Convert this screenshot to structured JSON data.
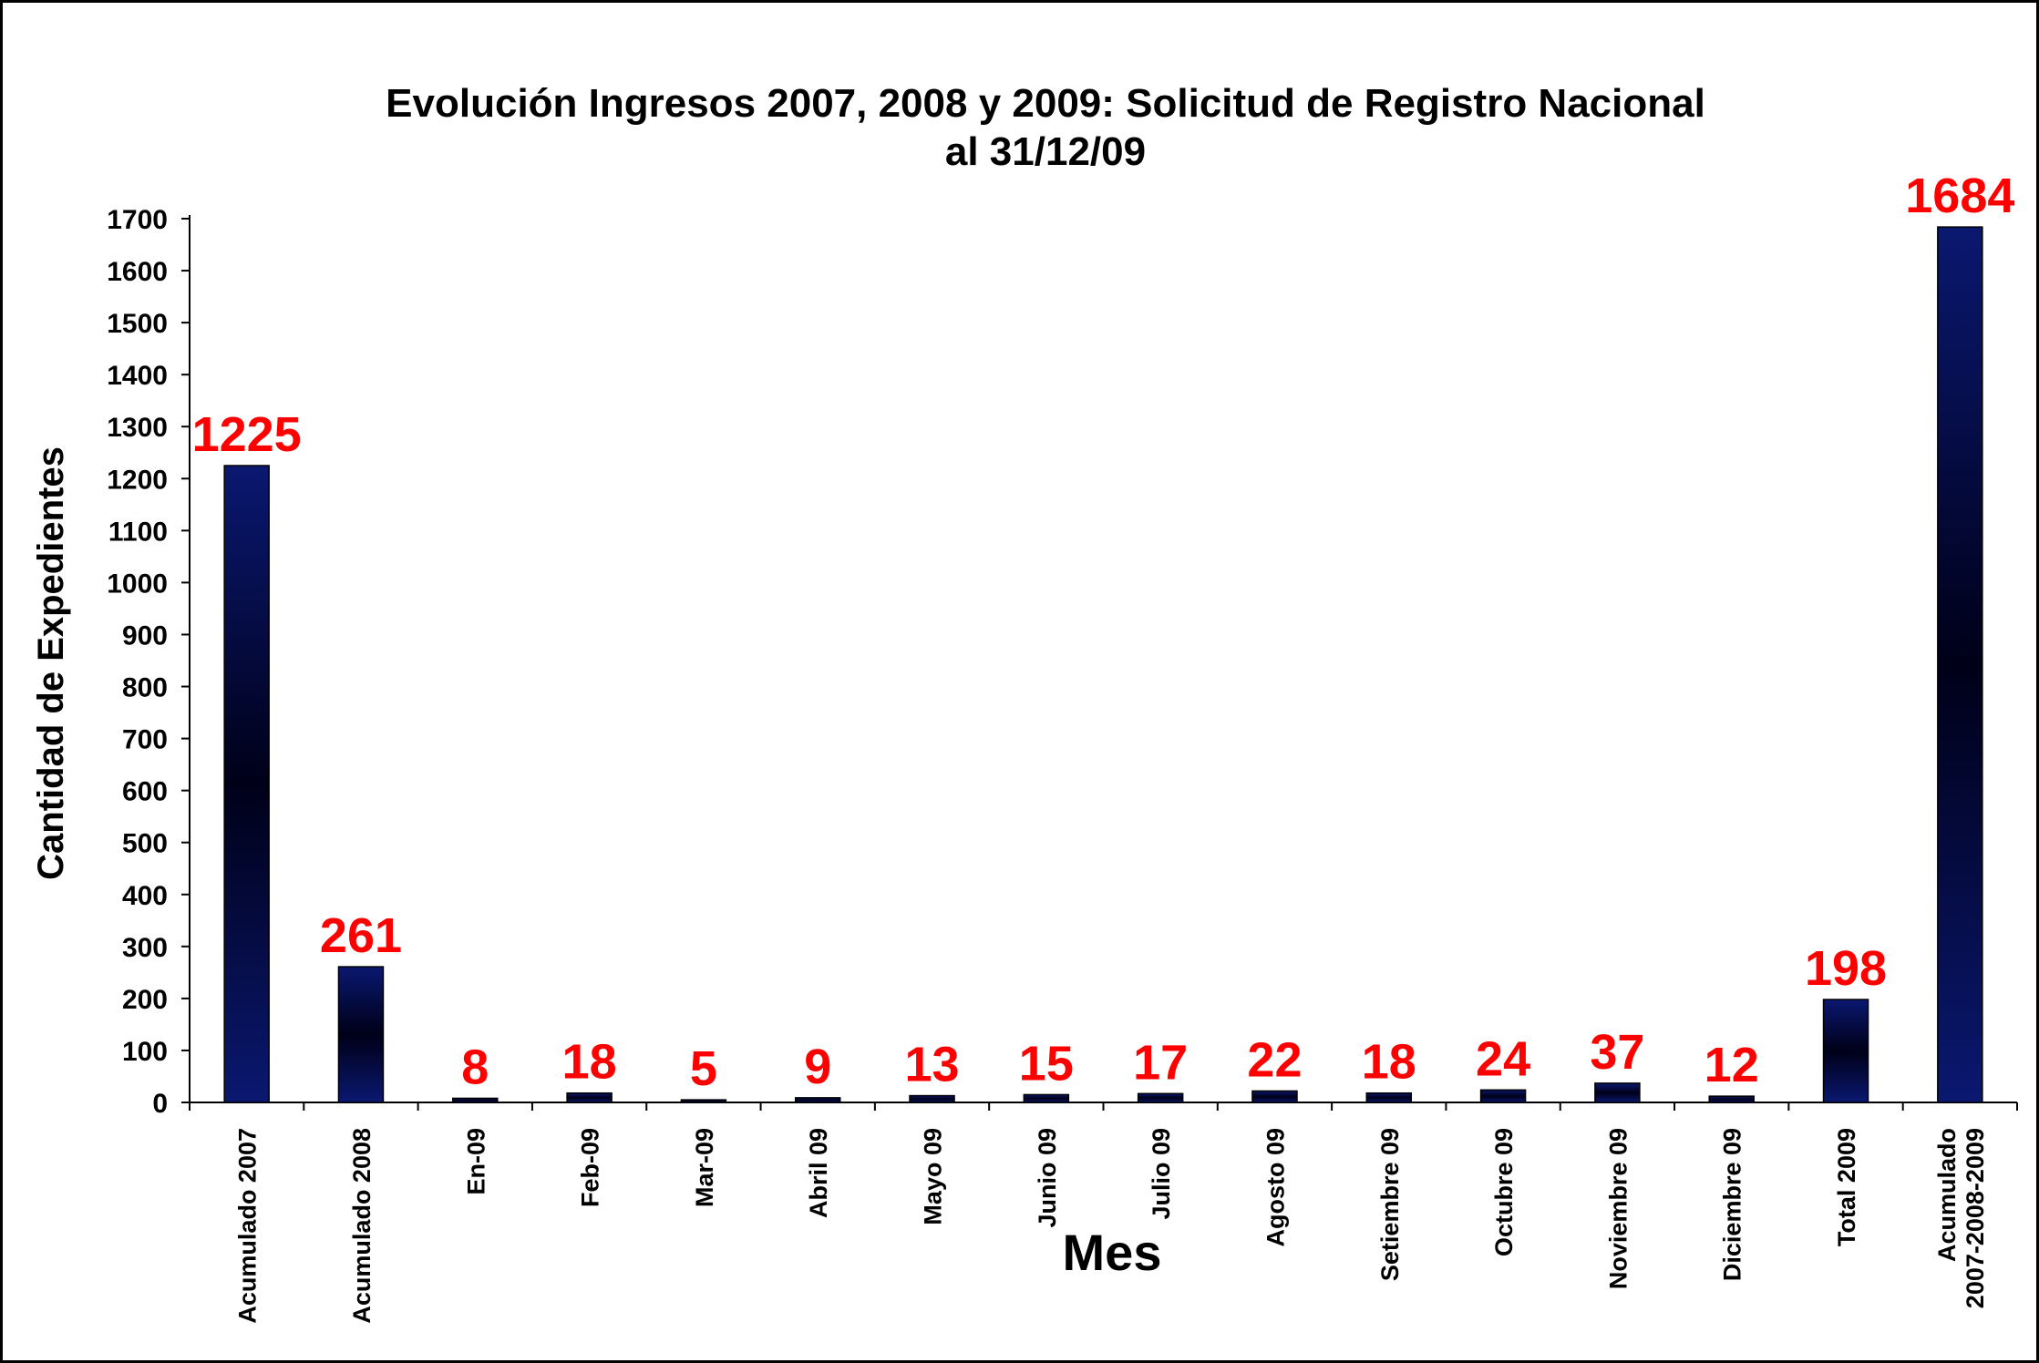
{
  "chart_data": {
    "type": "bar",
    "title": [
      "Evolución Ingresos 2007, 2008 y 2009: Solicitud de Registro Nacional",
      "al 31/12/09"
    ],
    "xlabel": "Mes",
    "ylabel": "Cantidad de Expedientes",
    "categories": [
      [
        "Acumulado 2007"
      ],
      [
        "Acumulado 2008"
      ],
      [
        "En-09"
      ],
      [
        "Feb-09"
      ],
      [
        "Mar-09"
      ],
      [
        "Abril 09"
      ],
      [
        "Mayo 09"
      ],
      [
        "Junio 09"
      ],
      [
        "Julio 09"
      ],
      [
        "Agosto 09"
      ],
      [
        "Setiembre 09"
      ],
      [
        "Octubre 09"
      ],
      [
        "Noviembre 09"
      ],
      [
        "Diciembre 09"
      ],
      [
        "Total 2009"
      ],
      [
        "Acumulado",
        "2007-2008-2009"
      ]
    ],
    "values": [
      1225,
      261,
      8,
      18,
      5,
      9,
      13,
      15,
      17,
      22,
      18,
      24,
      37,
      12,
      198,
      1684
    ],
    "data_labels": [
      "1225",
      "261",
      "8",
      "18",
      "5",
      "9",
      "13",
      "15",
      "17",
      "22",
      "18",
      "24",
      "37",
      "12",
      "198",
      "1684"
    ],
    "yticks": [
      0,
      100,
      200,
      300,
      400,
      500,
      600,
      700,
      800,
      900,
      1000,
      1100,
      1200,
      1300,
      1400,
      1500,
      1600,
      1700
    ],
    "ylim": [
      0,
      1700
    ],
    "grid": false,
    "legend": "none",
    "colors": {
      "bar_edge": "#0a1870",
      "bar_mid": "#000018",
      "data_label": "#ff0000",
      "axis": "#000000"
    }
  }
}
